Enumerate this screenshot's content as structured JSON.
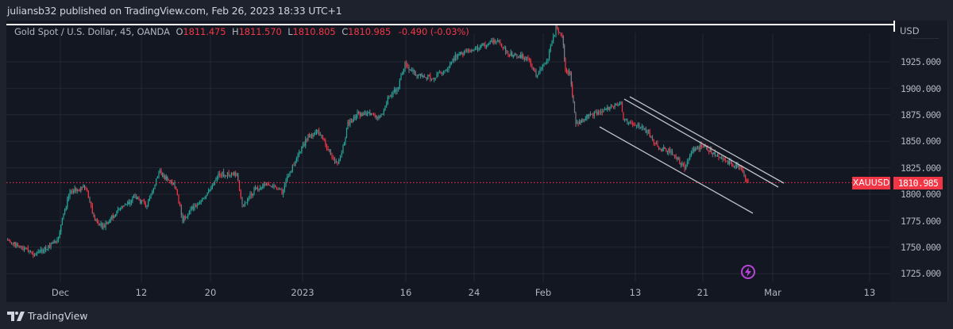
{
  "header": {
    "published_by": "juliansb32 published on TradingView.com, Feb 26, 2023 18:33 UTC+1"
  },
  "legend": {
    "instrument": "Gold Spot / U.S. Dollar, 45, OANDA",
    "open_label": "O",
    "open": "1811.475",
    "high_label": "H",
    "high": "1811.570",
    "low_label": "L",
    "low": "1810.805",
    "close_label": "C",
    "close": "1810.985",
    "change": "-0.490 (-0.03%)"
  },
  "price_axis": {
    "currency": "USD",
    "ticks": [
      "1925.000",
      "1900.000",
      "1875.000",
      "1850.000",
      "1825.000",
      "1800.000",
      "1775.000",
      "1750.000",
      "1725.000"
    ]
  },
  "current_price_badge": {
    "symbol": "XAUUSD",
    "price": "1810.985"
  },
  "time_axis": {
    "ticks": [
      "Dec",
      "12",
      "20",
      "2023",
      "16",
      "24",
      "Feb",
      "13",
      "21",
      "Mar",
      "13"
    ]
  },
  "footer": {
    "brand": "TradingView"
  },
  "colors": {
    "up": "#26a69a",
    "down": "#f23645",
    "background": "#131722",
    "grid": "#2a2e39",
    "trendline": "#d1d4dc",
    "flash": "#b844d9"
  },
  "chart_data": {
    "type": "candlestick",
    "title": "Gold Spot / U.S. Dollar, 45, OANDA",
    "xlabel": "",
    "ylabel": "USD",
    "ylim": [
      1715,
      1955
    ],
    "grid": true,
    "x_ticks": [
      "Dec",
      "12",
      "20",
      "2023",
      "16",
      "24",
      "Feb",
      "13",
      "21",
      "Mar",
      "13"
    ],
    "y_ticks": [
      1725,
      1750,
      1775,
      1800,
      1825,
      1850,
      1875,
      1900,
      1925
    ],
    "current_price": 1810.985,
    "price_path": [
      {
        "x": "Nov 28",
        "price": 1757
      },
      {
        "x": "Nov 30",
        "price": 1743
      },
      {
        "x": "Dec 1",
        "price": 1755
      },
      {
        "x": "Dec 1b",
        "price": 1781
      },
      {
        "x": "Dec 2",
        "price": 1802
      },
      {
        "x": "Dec 5",
        "price": 1807
      },
      {
        "x": "Dec 6",
        "price": 1777
      },
      {
        "x": "Dec 7",
        "price": 1769
      },
      {
        "x": "Dec 9",
        "price": 1786
      },
      {
        "x": "Dec 12",
        "price": 1797
      },
      {
        "x": "Dec 13",
        "price": 1789
      },
      {
        "x": "Dec 14",
        "price": 1821
      },
      {
        "x": "Dec 15",
        "price": 1808
      },
      {
        "x": "Dec 16",
        "price": 1776
      },
      {
        "x": "Dec 19",
        "price": 1789
      },
      {
        "x": "Dec 20",
        "price": 1796
      },
      {
        "x": "Dec 21",
        "price": 1819
      },
      {
        "x": "Dec 22",
        "price": 1819
      },
      {
        "x": "Dec 23",
        "price": 1789
      },
      {
        "x": "Dec 27",
        "price": 1804
      },
      {
        "x": "Dec 28",
        "price": 1810
      },
      {
        "x": "Dec 29",
        "price": 1802
      },
      {
        "x": "Dec 30",
        "price": 1821
      },
      {
        "x": "Jan 2",
        "price": 1836
      },
      {
        "x": "Jan 4",
        "price": 1855
      },
      {
        "x": "Jan 5",
        "price": 1859
      },
      {
        "x": "Jan 6",
        "price": 1836
      },
      {
        "x": "Jan 6b",
        "price": 1829
      },
      {
        "x": "Jan 9",
        "price": 1844
      },
      {
        "x": "Jan 10",
        "price": 1866
      },
      {
        "x": "Jan 11",
        "price": 1876
      },
      {
        "x": "Jan 13",
        "price": 1874
      },
      {
        "x": "Jan 15",
        "price": 1893
      },
      {
        "x": "Jan 16",
        "price": 1899
      },
      {
        "x": "Jan 17",
        "price": 1923
      },
      {
        "x": "Jan 18",
        "price": 1912
      },
      {
        "x": "Jan 19",
        "price": 1910
      },
      {
        "x": "Jan 20",
        "price": 1916
      },
      {
        "x": "Jan 23",
        "price": 1931
      },
      {
        "x": "Jan 25",
        "price": 1938
      },
      {
        "x": "Jan 26",
        "price": 1945
      },
      {
        "x": "Jan 27",
        "price": 1932
      },
      {
        "x": "Jan 30",
        "price": 1929
      },
      {
        "x": "Jan 31",
        "price": 1912
      },
      {
        "x": "Feb 1",
        "price": 1929
      },
      {
        "x": "Feb 2",
        "price": 1957
      },
      {
        "x": "Feb 2b",
        "price": 1950
      },
      {
        "x": "Feb 3",
        "price": 1916
      },
      {
        "x": "Feb 3b",
        "price": 1914
      },
      {
        "x": "Feb 3c",
        "price": 1886
      },
      {
        "x": "Feb 6",
        "price": 1867
      },
      {
        "x": "Feb 7",
        "price": 1875
      },
      {
        "x": "Feb 8",
        "price": 1878
      },
      {
        "x": "Feb 10",
        "price": 1887
      },
      {
        "x": "Feb 13",
        "price": 1870
      },
      {
        "x": "Feb 14",
        "price": 1866
      },
      {
        "x": "Feb 15",
        "price": 1859
      },
      {
        "x": "Feb 16",
        "price": 1844
      },
      {
        "x": "Feb 17",
        "price": 1840
      },
      {
        "x": "Feb 20",
        "price": 1825
      },
      {
        "x": "Feb 21",
        "price": 1842
      },
      {
        "x": "Feb 22",
        "price": 1846
      },
      {
        "x": "Feb 23",
        "price": 1836
      },
      {
        "x": "Feb 24",
        "price": 1829
      },
      {
        "x": "Feb 24b",
        "price": 1826
      },
      {
        "x": "Feb 24c",
        "price": 1811
      }
    ],
    "annotations": [
      {
        "type": "trendline",
        "label": "channel-lower",
        "from": {
          "x": "Feb 6",
          "price": 1866
        },
        "to": {
          "x": "Mar 1",
          "price": 1783
        }
      },
      {
        "type": "trendline",
        "label": "channel-upper-1",
        "from": {
          "x": "Feb 10",
          "price": 1889
        },
        "to": {
          "x": "Mar 1",
          "price": 1810
        }
      },
      {
        "type": "trendline",
        "label": "channel-upper-2",
        "from": {
          "x": "Feb 10b",
          "price": 1892
        },
        "to": {
          "x": "Mar 1b",
          "price": 1811
        }
      },
      {
        "type": "hline",
        "label": "current-price-line",
        "price": 1810.985,
        "style": "dotted"
      }
    ]
  }
}
